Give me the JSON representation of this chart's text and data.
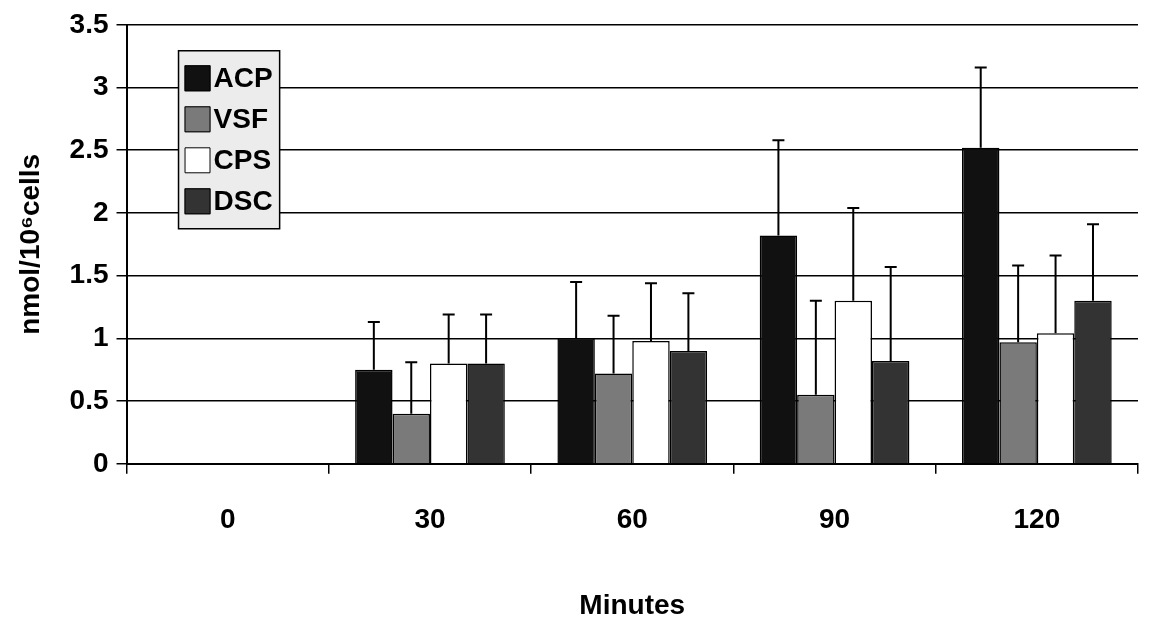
{
  "chart_data": {
    "type": "bar",
    "categories": [
      "0",
      "30",
      "60",
      "90",
      "120"
    ],
    "xlabel": "Minutes",
    "ylabel": "nmol/10⁶cells",
    "ylim": [
      0,
      3.5
    ],
    "yticks": [
      0,
      0.5,
      1,
      1.5,
      2,
      2.5,
      3,
      3.5
    ],
    "grid": "y",
    "legend": "top left",
    "series": [
      {
        "name": "ACP",
        "color": "#111111",
        "values": [
          0,
          0.75,
          1.0,
          1.82,
          2.52
        ],
        "errors": [
          null,
          [
            0.75,
            1.13
          ],
          [
            1.0,
            1.45
          ],
          [
            1.82,
            2.58
          ],
          [
            2.52,
            3.16
          ]
        ]
      },
      {
        "name": "VSF",
        "color": "#7a7a7a",
        "values": [
          0,
          0.4,
          0.72,
          0.55,
          0.97
        ],
        "errors": [
          null,
          [
            0.4,
            0.81
          ],
          [
            0.72,
            1.18
          ],
          [
            0.55,
            1.3
          ],
          [
            0.97,
            1.58
          ]
        ]
      },
      {
        "name": "CPS",
        "color": "#ffffff",
        "values": [
          0,
          0.8,
          0.98,
          1.3,
          1.04
        ],
        "errors": [
          null,
          [
            0.8,
            1.19
          ],
          [
            0.98,
            1.44
          ],
          [
            1.3,
            2.04
          ],
          [
            1.04,
            1.66
          ]
        ]
      },
      {
        "name": "DSC",
        "color": "#333333",
        "values": [
          0,
          0.8,
          0.9,
          0.82,
          1.3
        ],
        "errors": [
          null,
          [
            0.8,
            1.19
          ],
          [
            0.9,
            1.36
          ],
          [
            0.82,
            1.57
          ],
          [
            1.3,
            1.91
          ]
        ]
      }
    ]
  }
}
